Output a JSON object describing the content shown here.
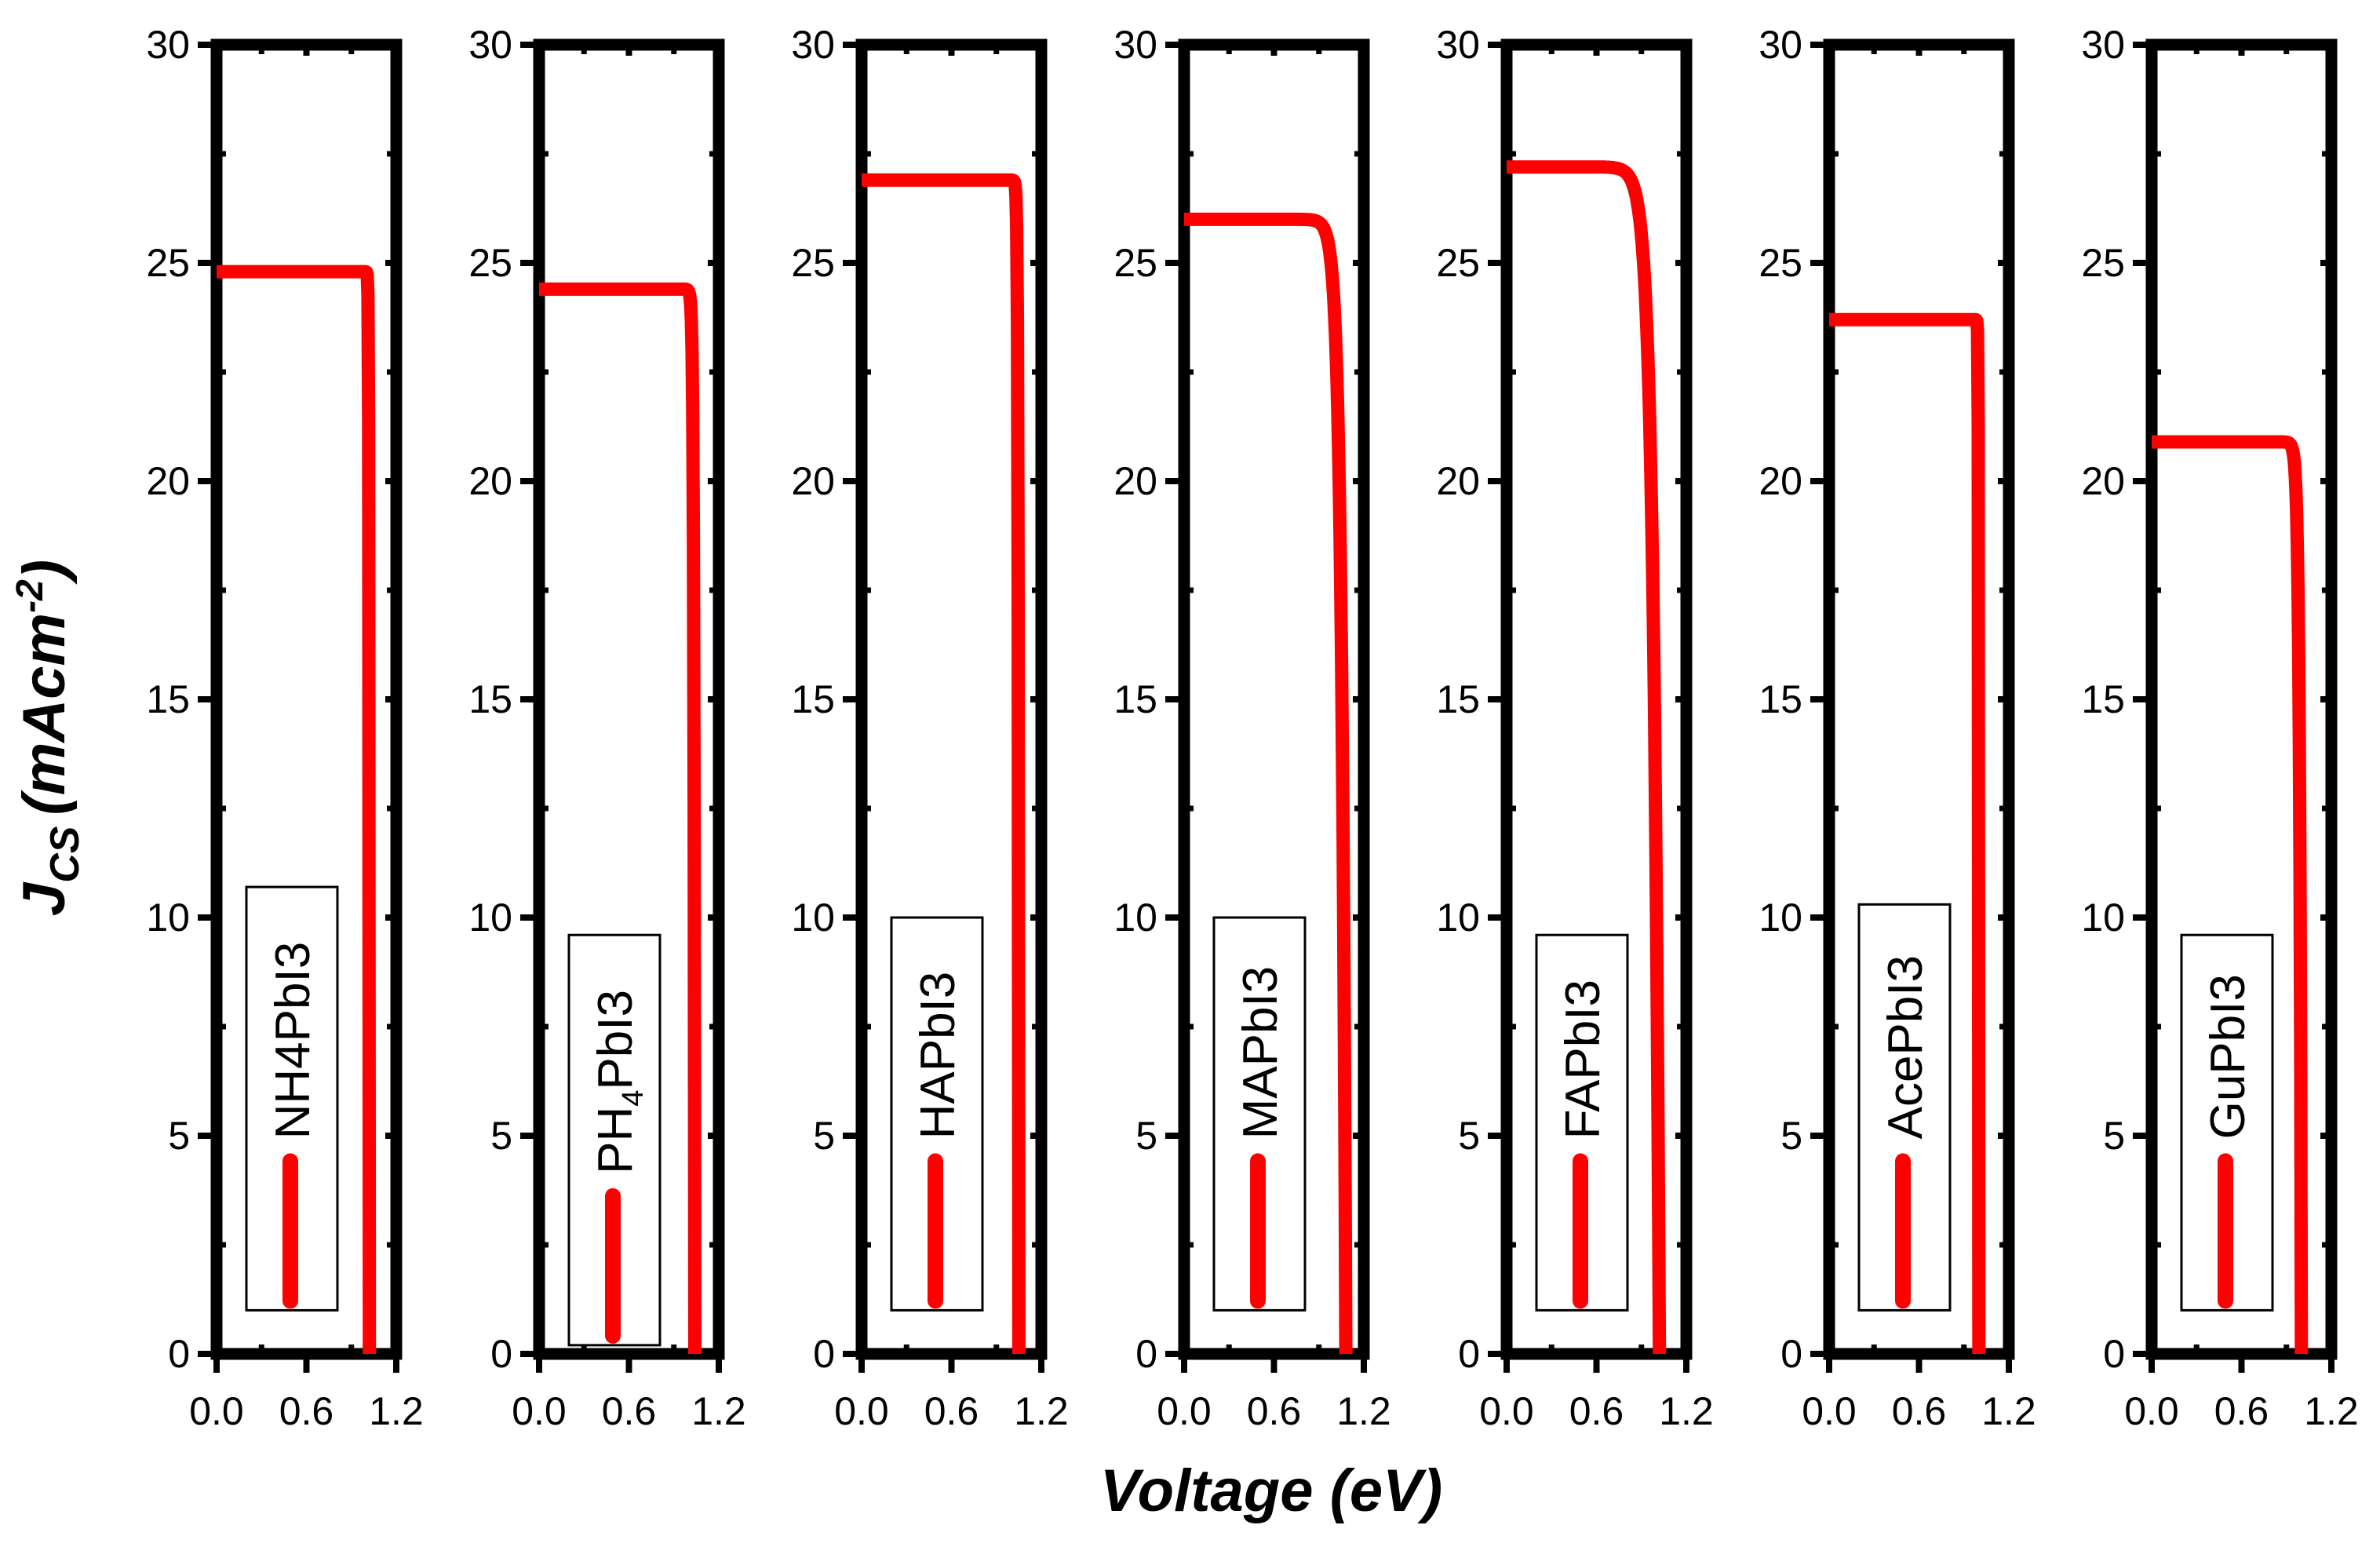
{
  "chart_data": {
    "type": "line",
    "title": "",
    "xlabel": "Voltage (eV)",
    "ylabel_main": "J",
    "ylabel_sub": "CS",
    "ylabel_unit_prefix": "(mAcm",
    "ylabel_unit_exp": "-2",
    "ylabel_unit_suffix": ")",
    "xlim": [
      0,
      1.2
    ],
    "ylim": [
      0,
      30
    ],
    "xticks": [
      "0.0",
      "0.6",
      "1.2"
    ],
    "yticks": [
      "0",
      "5",
      "10",
      "15",
      "20",
      "25",
      "30"
    ],
    "color": "#ff0000",
    "panels": [
      {
        "legend": "NH4PbI3",
        "legend_parts": [
          "NH4PbI3"
        ],
        "jsc": 24.8,
        "voc": 1.02,
        "knee": 0.9,
        "curvature": 0.02,
        "legend_box": {
          "top": 10.7,
          "bottom": 1.0
        }
      },
      {
        "legend": "PH4PbI3",
        "legend_parts": [
          "PH",
          "4",
          "PbI3"
        ],
        "jsc": 24.4,
        "voc": 1.04,
        "knee": 0.85,
        "curvature": 0.035,
        "legend_box": {
          "top": 9.6,
          "bottom": 0.2
        }
      },
      {
        "legend": "HAPbI3",
        "legend_parts": [
          "HAPbI3"
        ],
        "jsc": 26.9,
        "voc": 1.05,
        "knee": 0.9,
        "curvature": 0.03,
        "legend_box": {
          "top": 10.0,
          "bottom": 1.0
        }
      },
      {
        "legend": "MAPbI3",
        "legend_parts": [
          "MAPbI3"
        ],
        "jsc": 26.0,
        "voc": 1.08,
        "knee": 0.7,
        "curvature": 0.08,
        "legend_box": {
          "top": 10.0,
          "bottom": 1.0
        }
      },
      {
        "legend": "FAPbI3",
        "legend_parts": [
          "FAPbI3"
        ],
        "jsc": 27.2,
        "voc": 1.02,
        "knee": 0.6,
        "curvature": 0.1,
        "legend_box": {
          "top": 9.6,
          "bottom": 1.0
        }
      },
      {
        "legend": "AcePbI3",
        "legend_parts": [
          "AcePbI3"
        ],
        "jsc": 23.7,
        "voc": 1.0,
        "knee": 0.9,
        "curvature": 0.02,
        "legend_box": {
          "top": 10.3,
          "bottom": 1.0
        }
      },
      {
        "legend": "GuPbI3",
        "legend_parts": [
          "GuPbI3"
        ],
        "jsc": 20.9,
        "voc": 1.0,
        "knee": 0.75,
        "curvature": 0.05,
        "legend_box": {
          "top": 9.6,
          "bottom": 1.0
        }
      }
    ]
  }
}
